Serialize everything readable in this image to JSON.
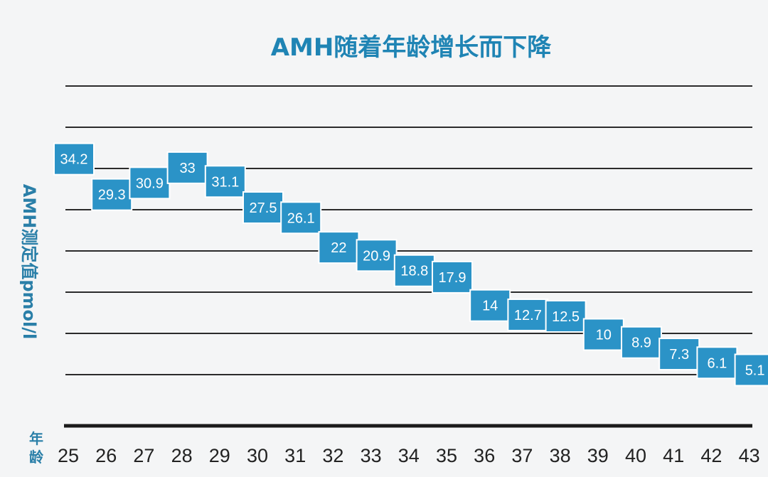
{
  "chart_data": {
    "type": "scatter",
    "title": "AMH随着年龄增长而下降",
    "xlabel": "年龄",
    "ylabel": "AMH测定值pmol/l",
    "categories": [
      "25",
      "26",
      "27",
      "28",
      "29",
      "30",
      "31",
      "32",
      "33",
      "34",
      "35",
      "36",
      "37",
      "38",
      "39",
      "40",
      "41",
      "42",
      "43"
    ],
    "series": [
      {
        "values": [
          34.2,
          29.3,
          30.9,
          33,
          31.1,
          27.5,
          26.1,
          22,
          20.9,
          18.8,
          17.9,
          14,
          12.7,
          12.5,
          10,
          8.9,
          7.3,
          6.1,
          5.1
        ]
      }
    ],
    "grid": true,
    "colors": {
      "marker": "#2b93c7",
      "marker_border": "#ffffff",
      "title": "#1f84b4",
      "axis_label": "#2a7fa8"
    }
  }
}
